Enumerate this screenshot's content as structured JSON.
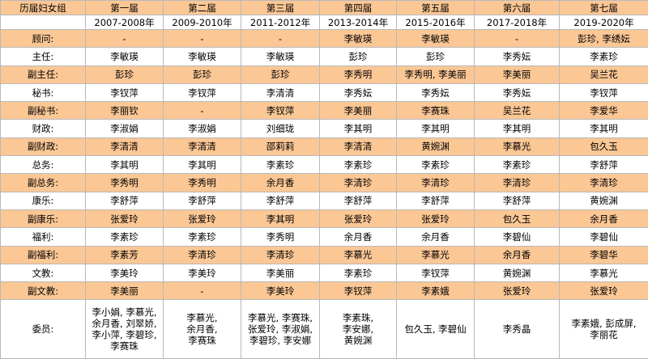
{
  "table": {
    "title": "历届妇女组",
    "terms": [
      {
        "name": "第一届",
        "years": "2007-2008年"
      },
      {
        "name": "第二届",
        "years": "2009-2010年"
      },
      {
        "name": "第三届",
        "years": "2011-2012年"
      },
      {
        "name": "第四届",
        "years": "2013-2014年"
      },
      {
        "name": "第五届",
        "years": "2015-2016年"
      },
      {
        "name": "第六届",
        "years": "2017-2018年"
      },
      {
        "name": "第七届",
        "years": "2019-2020年"
      }
    ],
    "rows": [
      {
        "label": "顾问:",
        "cells": [
          "-",
          "-",
          "-",
          "李敏瑛",
          "李敏瑛",
          "-",
          "彭珍, 李绣妘"
        ]
      },
      {
        "label": "主任:",
        "cells": [
          "李敏瑛",
          "李敏瑛",
          "李敏瑛",
          "彭珍",
          "彭珍",
          "李秀妘",
          "李素珍"
        ]
      },
      {
        "label": "副主任:",
        "cells": [
          "彭珍",
          "彭珍",
          "彭珍",
          "李秀明",
          "李秀明, 李美丽",
          "李美丽",
          "吴兰花"
        ]
      },
      {
        "label": "秘书:",
        "cells": [
          "李钗萍",
          "李钗萍",
          "李清清",
          "李秀妘",
          "李秀妘",
          "李秀妘",
          "李钗萍"
        ]
      },
      {
        "label": "副秘书:",
        "cells": [
          "李丽钦",
          "-",
          "李钗萍",
          "李美丽",
          "李赛珠",
          "吴兰花",
          "李爱华"
        ]
      },
      {
        "label": "财政:",
        "cells": [
          "李淑娟",
          "李淑娟",
          "刘细珑",
          "李其明",
          "李其明",
          "李其明",
          "李其明"
        ]
      },
      {
        "label": "副财政:",
        "cells": [
          "李清清",
          "李清清",
          "邵莉莉",
          "李清清",
          "黄婉渊",
          "李慕光",
          "包久玉"
        ]
      },
      {
        "label": "总务:",
        "cells": [
          "李其明",
          "李其明",
          "李素珍",
          "李素珍",
          "李素珍",
          "李素珍",
          "李舒萍"
        ]
      },
      {
        "label": "副总务:",
        "cells": [
          "李秀明",
          "李秀明",
          "余月香",
          "李清珍",
          "李清珍",
          "李清珍",
          "李清珍"
        ]
      },
      {
        "label": "康乐:",
        "cells": [
          "李舒萍",
          "李舒萍",
          "李舒萍",
          "李舒萍",
          "李舒萍",
          "李舒萍",
          "黄婉渊"
        ]
      },
      {
        "label": "副康乐:",
        "cells": [
          "张爱玲",
          "张爱玲",
          "李其明",
          "张爱玲",
          "张爱玲",
          "包久玉",
          "余月香"
        ]
      },
      {
        "label": "福利:",
        "cells": [
          "李素珍",
          "李素珍",
          "李秀明",
          "余月香",
          "余月香",
          "李碧仙",
          "李碧仙"
        ]
      },
      {
        "label": "副福利:",
        "cells": [
          "李素芳",
          "李清珍",
          "李清珍",
          "李慕光",
          "李慕光",
          "余月香",
          "李碧华"
        ]
      },
      {
        "label": "文教:",
        "cells": [
          "李美玲",
          "李美玲",
          "李美丽",
          "李素珍",
          "李钗萍",
          "黄婉渊",
          "李慕光"
        ]
      },
      {
        "label": "副文教:",
        "cells": [
          "李美丽",
          "-",
          "李美玲",
          "李钗萍",
          "李素娥",
          "张爱玲",
          "张爱玲"
        ]
      }
    ],
    "members": {
      "label": "委员:",
      "cells": [
        [
          "李小娟, 李慕光,",
          "余月香, 刘翠娇,",
          "李小萍, 李碧珍,",
          "李赛珠"
        ],
        [
          "李慕光,",
          "余月香,",
          "李赛珠"
        ],
        [
          "李慕光, 李赛珠,",
          "张爱玲, 李淑娟,",
          "李碧珍, 李安娜"
        ],
        [
          "李素珠,",
          "李安娜,",
          "黄婉渊"
        ],
        [
          "包久玉, 李碧仙"
        ],
        [
          "李秀晶"
        ],
        [
          "李素娥, 彭成屏,",
          "李丽花"
        ]
      ]
    }
  }
}
